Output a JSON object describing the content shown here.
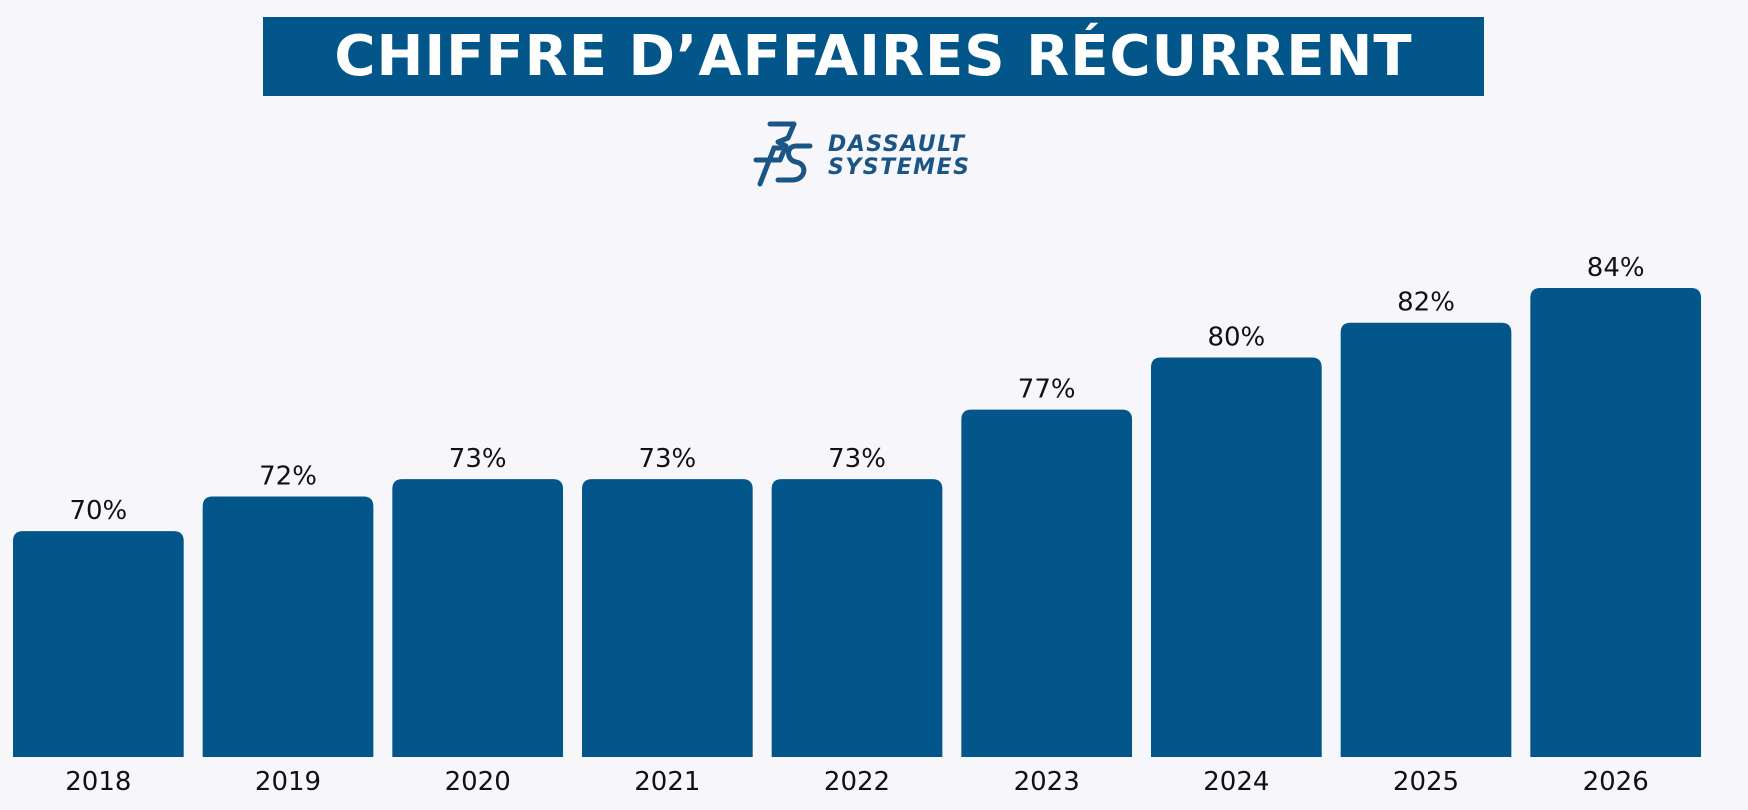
{
  "header": {
    "title": "CHIFFRE D’AFFAIRES RÉCURRENT"
  },
  "logo": {
    "line1": "DASSAULT",
    "line2": "SYSTEMES",
    "icon": "dassault-3ds-logo-icon",
    "color": "#1a5585"
  },
  "colors": {
    "bar": "#03568a",
    "banner": "#03568a",
    "background": "#f7f7fb",
    "text": "#111111"
  },
  "chart_data": {
    "type": "bar",
    "title": "CHIFFRE D’AFFAIRES RÉCURRENT",
    "categories": [
      "2018",
      "2019",
      "2020",
      "2021",
      "2022",
      "2023",
      "2024",
      "2025",
      "2026"
    ],
    "values": [
      70,
      72,
      73,
      73,
      73,
      77,
      80,
      82,
      84
    ],
    "value_labels": [
      "70%",
      "72%",
      "73%",
      "73%",
      "73%",
      "77%",
      "80%",
      "82%",
      "84%"
    ],
    "ylim": [
      57,
      84
    ],
    "grid": false,
    "legend": "none"
  }
}
